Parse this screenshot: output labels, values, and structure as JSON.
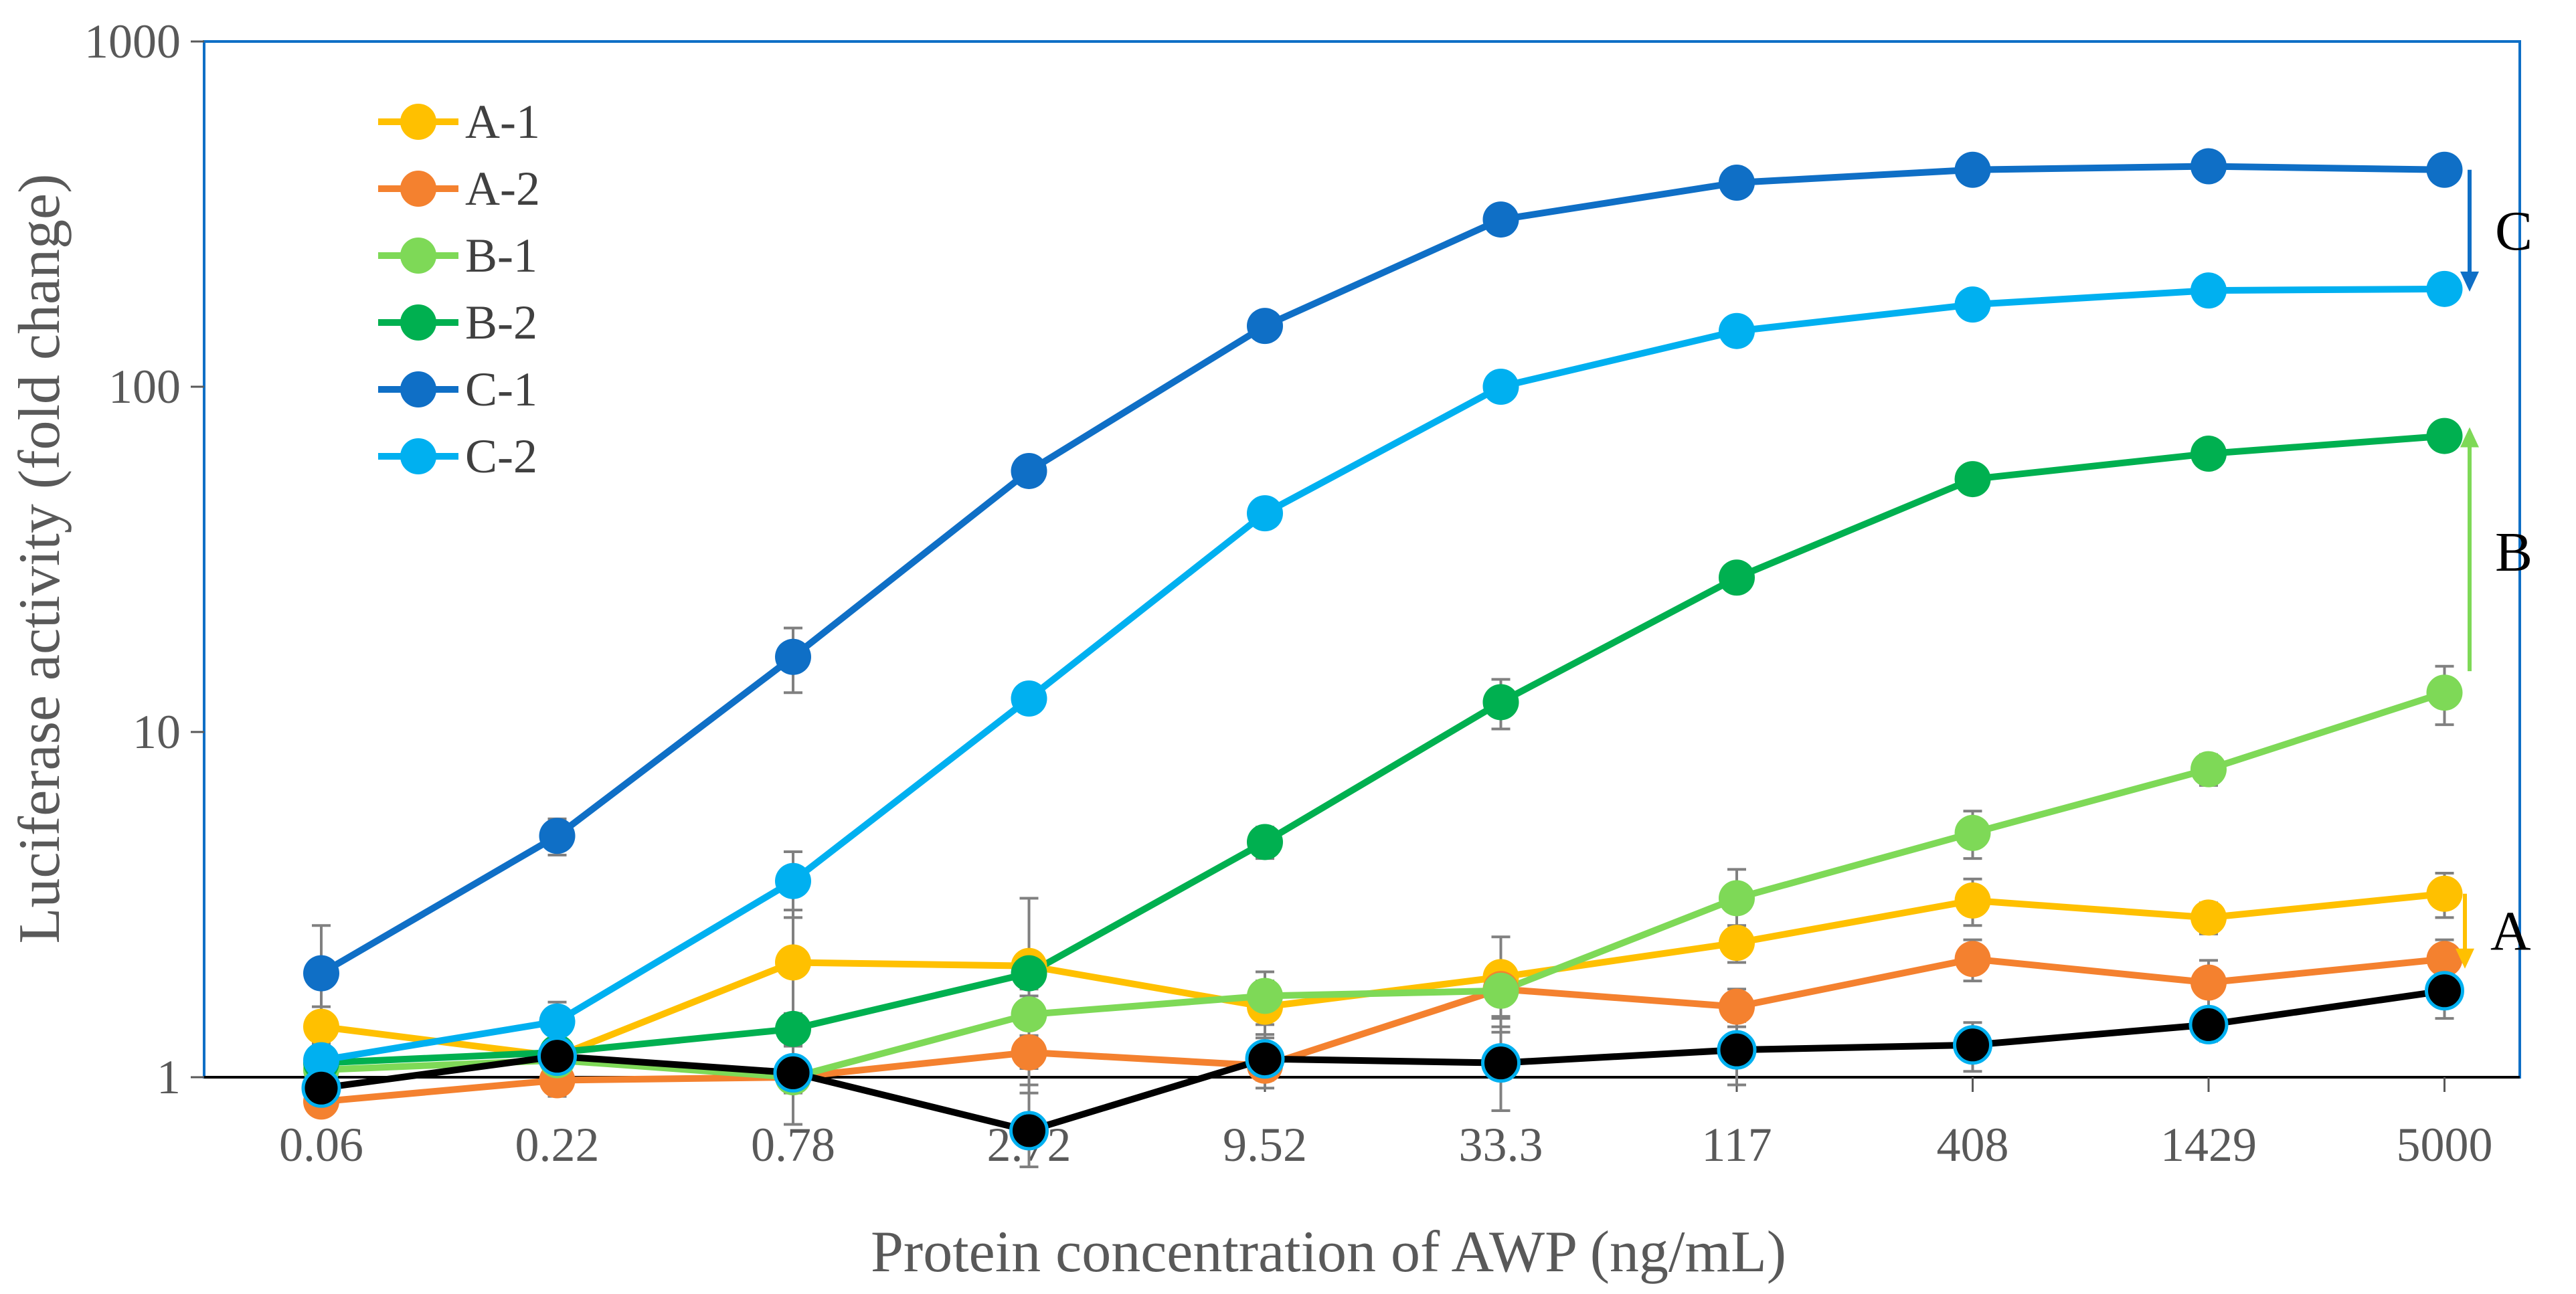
{
  "chart_data": {
    "type": "line",
    "title": "",
    "xlabel": "Protein concentration of AWP (ng/mL)",
    "ylabel": "Luciferase activity (fold change)",
    "yscale": "log",
    "ylim": [
      1,
      1000
    ],
    "yticks": [
      "1",
      "10",
      "100",
      "1000"
    ],
    "categories": [
      "0.06",
      "0.22",
      "0.78",
      "2.72",
      "9.52",
      "33.3",
      "117",
      "408",
      "1429",
      "5000"
    ],
    "series": [
      {
        "name": "A-1",
        "color": "#FFC000",
        "values": [
          1.4,
          1.15,
          2.15,
          2.1,
          1.6,
          1.95,
          2.45,
          3.25,
          2.9,
          3.4
        ],
        "errors": [
          0.2,
          0.1,
          0.9,
          1.2,
          0.3,
          0.6,
          0.3,
          0.5,
          0.3,
          0.5
        ]
      },
      {
        "name": "A-2",
        "color": "#F4812F",
        "values": [
          0.85,
          0.98,
          1.0,
          1.18,
          1.08,
          1.8,
          1.6,
          2.2,
          1.88,
          2.2
        ],
        "errors": [
          0.05,
          0.1,
          0.1,
          0.12,
          0.1,
          0.3,
          0.2,
          0.3,
          0.3,
          0.3
        ]
      },
      {
        "name": "B-1",
        "color": "#7ED957",
        "values": [
          1.05,
          1.12,
          1.0,
          1.52,
          1.72,
          1.78,
          3.3,
          5.1,
          7.8,
          13.0
        ],
        "errors": [
          0.05,
          0.1,
          0.05,
          0.2,
          0.3,
          0.3,
          0.7,
          0.8,
          0.8,
          2.5
        ]
      },
      {
        "name": "B-2",
        "color": "#00B050",
        "values": [
          1.1,
          1.18,
          1.38,
          2.0,
          4.8,
          12.2,
          28.0,
          54.0,
          64.0,
          72.0
        ],
        "errors": [
          0.1,
          0.1,
          0.15,
          0.2,
          0.5,
          2.0,
          2.0,
          4.0,
          4.0,
          4.0
        ]
      },
      {
        "name": "C-1",
        "color": "#0F6FC6",
        "values": [
          2.0,
          5.0,
          16.5,
          57.0,
          150.0,
          305.0,
          390.0,
          425.0,
          435.0,
          425.0
        ],
        "errors": [
          0.75,
          0.6,
          3.5,
          5.0,
          10.0,
          15.0,
          20.0,
          20.0,
          20.0,
          20.0
        ]
      },
      {
        "name": "C-2",
        "color": "#00B0F0",
        "values": [
          1.12,
          1.45,
          3.7,
          12.5,
          43.0,
          100.0,
          145.0,
          173.0,
          190.0,
          192.0
        ],
        "errors": [
          0.1,
          0.2,
          0.8,
          1.0,
          3.0,
          5.0,
          8.0,
          8.0,
          8.0,
          8.0
        ]
      },
      {
        "name": "",
        "color": "#000000",
        "marker_stroke": "#00B0F0",
        "in_legend": false,
        "values": [
          0.93,
          1.15,
          1.03,
          0.7,
          1.13,
          1.1,
          1.2,
          1.24,
          1.42,
          1.78
        ],
        "errors": [
          0.15,
          0.1,
          0.3,
          0.25,
          0.2,
          0.3,
          0.25,
          0.2,
          0.15,
          0.3
        ]
      }
    ],
    "annotations": [
      {
        "label": "C",
        "color": "#0F6FC6",
        "direction": "down",
        "from": 425,
        "to": 192
      },
      {
        "label": "B",
        "color": "#7ED957",
        "direction": "up",
        "from": 15,
        "to": 75
      },
      {
        "label": "A",
        "color": "#FFC000",
        "direction": "down",
        "from": 3.4,
        "to": 2.1
      }
    ],
    "legend_position": "top-left",
    "grid": false,
    "plot_border_color": "#0F6FC6"
  }
}
